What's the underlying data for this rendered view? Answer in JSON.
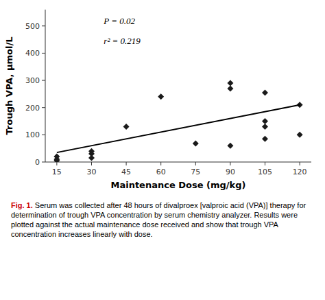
{
  "chart_data": {
    "type": "scatter",
    "xlabel": "Maintenance Dose (mg/kg)",
    "ylabel": "Trough VPA, μmol/L",
    "series": [
      {
        "type": "scatter",
        "marker": "diamond",
        "color": "#1a1a1a",
        "x": [
          15,
          15,
          15,
          30,
          30,
          30,
          45,
          60,
          75,
          90,
          90,
          90,
          105,
          105,
          105,
          105,
          120,
          120
        ],
        "values": [
          5,
          10,
          20,
          15,
          30,
          40,
          130,
          240,
          68,
          60,
          270,
          290,
          85,
          130,
          150,
          255,
          100,
          210
        ]
      },
      {
        "type": "line",
        "color": "#000000",
        "x": [
          15,
          120
        ],
        "values": [
          35,
          210
        ]
      }
    ],
    "annotations": [
      "P = 0.02",
      "r² = 0.219"
    ],
    "caption": {
      "label": "Fig. 1.",
      "color": "#cc0000",
      "text": " Serum was collected after 48 hours of divalproex [valproic acid (VPA)] therapy for determination of trough VPA concentration by serum chemistry analyzer. Results were plotted against the actual maintenance dose received and show that trough VPA concentration increases linearly with dose."
    },
    "xlim": [
      10,
      125
    ],
    "ylim": [
      0,
      560
    ],
    "xticks": [
      15,
      30,
      45,
      60,
      75,
      90,
      105,
      120
    ],
    "yticks": [
      0,
      100,
      200,
      300,
      400,
      500
    ],
    "grid": false
  }
}
